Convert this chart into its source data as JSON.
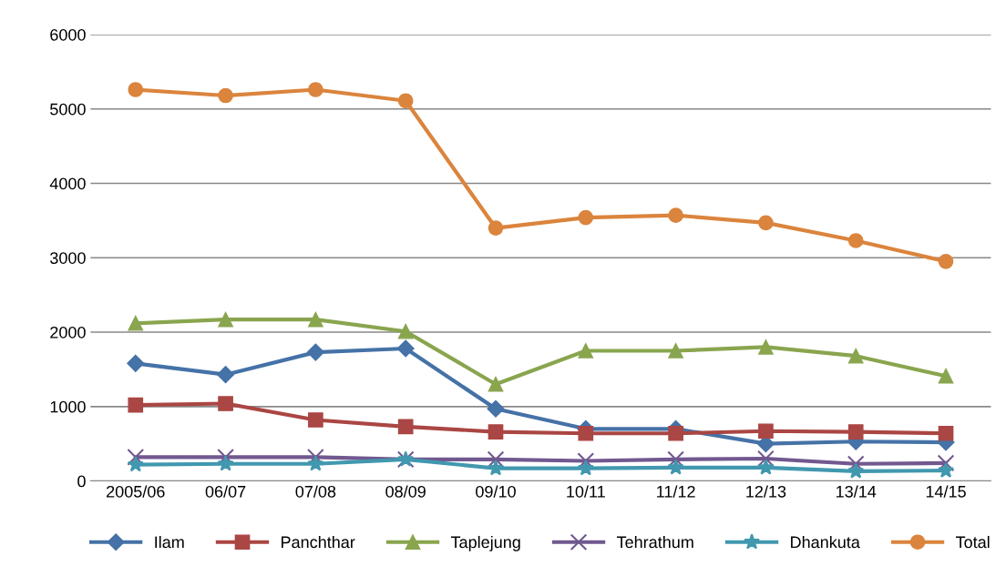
{
  "chart_data": {
    "type": "line",
    "categories": [
      "2005/06",
      "06/07",
      "07/08",
      "08/09",
      "09/10",
      "10/11",
      "11/12",
      "12/13",
      "13/14",
      "14/15"
    ],
    "series": [
      {
        "name": "Ilam",
        "color": "#4572a7",
        "marker": "diamond",
        "values": [
          1580,
          1430,
          1730,
          1780,
          970,
          700,
          700,
          500,
          530,
          520
        ]
      },
      {
        "name": "Panchthar",
        "color": "#aa4643",
        "marker": "square",
        "values": [
          1020,
          1040,
          820,
          730,
          660,
          640,
          640,
          670,
          660,
          640
        ]
      },
      {
        "name": "Taplejung",
        "color": "#89a54e",
        "marker": "triangle",
        "values": [
          2120,
          2170,
          2170,
          2010,
          1300,
          1750,
          1750,
          1800,
          1680,
          1410
        ]
      },
      {
        "name": "Tehrathum",
        "color": "#71588f",
        "marker": "cross",
        "values": [
          320,
          320,
          320,
          290,
          290,
          270,
          290,
          300,
          230,
          240
        ]
      },
      {
        "name": "Dhankuta",
        "color": "#4198af",
        "marker": "star",
        "values": [
          220,
          230,
          230,
          290,
          170,
          170,
          180,
          180,
          130,
          140
        ]
      },
      {
        "name": "Total",
        "color": "#db843d",
        "marker": "circle",
        "values": [
          5260,
          5180,
          5260,
          5110,
          3400,
          3540,
          3570,
          3470,
          3230,
          2950
        ]
      }
    ],
    "ylim": [
      0,
      6000
    ],
    "yticks": [
      0,
      1000,
      2000,
      3000,
      4000,
      5000,
      6000
    ],
    "grid": "y",
    "legend": "bottom"
  }
}
